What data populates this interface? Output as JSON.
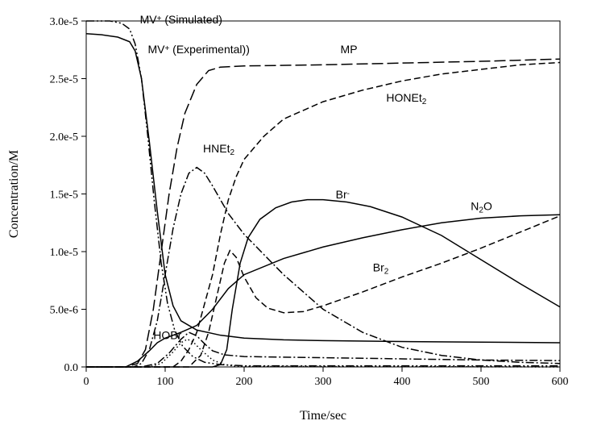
{
  "chart_data": {
    "type": "line",
    "xlabel": "Time/sec",
    "ylabel": "Concentration/M",
    "xlim": [
      0,
      600
    ],
    "ylim": [
      0,
      3e-05
    ],
    "x_ticks": [
      0,
      100,
      200,
      300,
      400,
      500,
      600
    ],
    "x_tick_labels": [
      "0",
      "100",
      "200",
      "300",
      "400",
      "500",
      "600"
    ],
    "y_ticks": [
      0,
      5e-06,
      1e-05,
      1.5e-05,
      2e-05,
      2.5e-05,
      3e-05
    ],
    "y_tick_labels": [
      "0.0",
      "5.0e-6",
      "1.0e-5",
      "1.5e-5",
      "2.0e-5",
      "2.5e-5",
      "3.0e-5"
    ],
    "grid": false,
    "legend": "none",
    "annotations": [
      {
        "id": "mv-sim",
        "base": "MV",
        "sup": "+",
        "sub": "",
        "rest": " (Simulated)",
        "x": 68,
        "y": 2.98e-05
      },
      {
        "id": "mv-exp",
        "base": "MV",
        "sup": "+",
        "sub": "",
        "rest": " (Experimental))",
        "x": 78,
        "y": 2.72e-05
      },
      {
        "id": "mp",
        "base": "MP",
        "sup": "",
        "sub": "",
        "rest": "",
        "x": 322,
        "y": 2.72e-05
      },
      {
        "id": "honet2",
        "base": "HONEt",
        "sup": "",
        "sub": "2",
        "rest": "",
        "x": 380,
        "y": 2.3e-05
      },
      {
        "id": "hnet2",
        "base": "HNEt",
        "sup": "",
        "sub": "2",
        "rest": "",
        "x": 148,
        "y": 1.86e-05
      },
      {
        "id": "br-minus",
        "base": "Br",
        "sup": "-",
        "sub": "",
        "rest": "",
        "x": 316,
        "y": 1.46e-05
      },
      {
        "id": "n2o",
        "base": "N",
        "sup": "",
        "sub": "2",
        "rest": "O",
        "x": 487,
        "y": 1.36e-05
      },
      {
        "id": "br2",
        "base": "Br",
        "sup": "",
        "sub": "2",
        "rest": "",
        "x": 363,
        "y": 8.3e-06
      },
      {
        "id": "hobr",
        "base": "HOBr",
        "sup": "",
        "sub": "",
        "rest": "",
        "x": 85,
        "y": 2.4e-06
      }
    ],
    "series": [
      {
        "style": "dash-dot-dot",
        "points": [
          [
            0,
            3e-05
          ],
          [
            30,
            3e-05
          ],
          [
            45,
            2.98e-05
          ],
          [
            55,
            2.93e-05
          ],
          [
            62,
            2.8e-05
          ],
          [
            70,
            2.5e-05
          ],
          [
            78,
            2e-05
          ],
          [
            86,
            1.45e-05
          ],
          [
            95,
            9e-06
          ],
          [
            103,
            5.5e-06
          ],
          [
            112,
            3.2e-06
          ],
          [
            122,
            1.8e-06
          ],
          [
            135,
            9e-07
          ],
          [
            150,
            4e-07
          ],
          [
            170,
            2e-07
          ],
          [
            200,
            1e-07
          ],
          [
            600,
            1e-07
          ]
        ]
      },
      {
        "style": "solid",
        "points": [
          [
            0,
            2.89e-05
          ],
          [
            20,
            2.88e-05
          ],
          [
            40,
            2.86e-05
          ],
          [
            55,
            2.82e-05
          ],
          [
            62,
            2.74e-05
          ],
          [
            70,
            2.5e-05
          ],
          [
            80,
            1.95e-05
          ],
          [
            90,
            1.35e-05
          ],
          [
            100,
            8e-06
          ],
          [
            110,
            5.3e-06
          ],
          [
            120,
            4e-06
          ],
          [
            140,
            3.2e-06
          ],
          [
            170,
            2.75e-06
          ],
          [
            200,
            2.5e-06
          ],
          [
            250,
            2.35e-06
          ],
          [
            300,
            2.28e-06
          ],
          [
            400,
            2.2e-06
          ],
          [
            500,
            2.15e-06
          ],
          [
            600,
            2.1e-06
          ]
        ]
      },
      {
        "style": "long-dash",
        "points": [
          [
            0,
            0
          ],
          [
            50,
            0
          ],
          [
            65,
            3e-07
          ],
          [
            75,
            1.5e-06
          ],
          [
            85,
            5e-06
          ],
          [
            95,
            1e-05
          ],
          [
            105,
            1.5e-05
          ],
          [
            115,
            1.9e-05
          ],
          [
            125,
            2.2e-05
          ],
          [
            140,
            2.45e-05
          ],
          [
            155,
            2.57e-05
          ],
          [
            170,
            2.6e-05
          ],
          [
            200,
            2.61e-05
          ],
          [
            300,
            2.62e-05
          ],
          [
            400,
            2.635e-05
          ],
          [
            500,
            2.65e-05
          ],
          [
            600,
            2.67e-05
          ]
        ]
      },
      {
        "style": "dash",
        "points": [
          [
            0,
            0
          ],
          [
            110,
            0
          ],
          [
            120,
            5e-07
          ],
          [
            130,
            1.5e-06
          ],
          [
            140,
            3e-06
          ],
          [
            150,
            5.5e-06
          ],
          [
            160,
            8e-06
          ],
          [
            170,
            1.15e-05
          ],
          [
            180,
            1.45e-05
          ],
          [
            190,
            1.65e-05
          ],
          [
            200,
            1.8e-05
          ],
          [
            225,
            2e-05
          ],
          [
            250,
            2.15e-05
          ],
          [
            300,
            2.3e-05
          ],
          [
            350,
            2.4e-05
          ],
          [
            400,
            2.48e-05
          ],
          [
            450,
            2.54e-05
          ],
          [
            500,
            2.58e-05
          ],
          [
            550,
            2.62e-05
          ],
          [
            600,
            2.64e-05
          ]
        ]
      },
      {
        "style": "dash-dot",
        "points": [
          [
            0,
            0
          ],
          [
            60,
            0
          ],
          [
            70,
            3e-07
          ],
          [
            80,
            1.5e-06
          ],
          [
            90,
            4e-06
          ],
          [
            100,
            8e-06
          ],
          [
            110,
            1.2e-05
          ],
          [
            120,
            1.5e-05
          ],
          [
            130,
            1.68e-05
          ],
          [
            140,
            1.73e-05
          ],
          [
            150,
            1.68e-05
          ],
          [
            160,
            1.57e-05
          ],
          [
            170,
            1.45e-05
          ],
          [
            180,
            1.33e-05
          ],
          [
            200,
            1.15e-05
          ],
          [
            250,
            8e-06
          ],
          [
            300,
            5e-06
          ],
          [
            350,
            3e-06
          ],
          [
            400,
            1.7e-06
          ],
          [
            450,
            1e-06
          ],
          [
            500,
            6e-07
          ],
          [
            550,
            4e-07
          ],
          [
            600,
            3e-07
          ]
        ]
      },
      {
        "style": "solid",
        "points": [
          [
            0,
            0
          ],
          [
            160,
            0
          ],
          [
            170,
            2e-07
          ],
          [
            178,
            1.5e-06
          ],
          [
            185,
            5e-06
          ],
          [
            195,
            9e-06
          ],
          [
            205,
            1.12e-05
          ],
          [
            220,
            1.28e-05
          ],
          [
            240,
            1.38e-05
          ],
          [
            260,
            1.43e-05
          ],
          [
            280,
            1.45e-05
          ],
          [
            300,
            1.45e-05
          ],
          [
            330,
            1.43e-05
          ],
          [
            360,
            1.39e-05
          ],
          [
            400,
            1.3e-05
          ],
          [
            450,
            1.14e-05
          ],
          [
            500,
            9.3e-06
          ],
          [
            550,
            7.2e-06
          ],
          [
            600,
            5.2e-06
          ]
        ]
      },
      {
        "style": "solid",
        "points": [
          [
            0,
            0
          ],
          [
            50,
            0
          ],
          [
            65,
            5e-07
          ],
          [
            80,
            1.4e-06
          ],
          [
            90,
            2.1e-06
          ],
          [
            100,
            2.5e-06
          ],
          [
            120,
            3e-06
          ],
          [
            140,
            3.6e-06
          ],
          [
            160,
            5e-06
          ],
          [
            180,
            6.8e-06
          ],
          [
            200,
            8e-06
          ],
          [
            250,
            9.4e-06
          ],
          [
            300,
            1.04e-05
          ],
          [
            350,
            1.12e-05
          ],
          [
            400,
            1.19e-05
          ],
          [
            450,
            1.25e-05
          ],
          [
            500,
            1.29e-05
          ],
          [
            550,
            1.31e-05
          ],
          [
            600,
            1.32e-05
          ]
        ]
      },
      {
        "style": "dash",
        "points": [
          [
            0,
            0
          ],
          [
            130,
            0
          ],
          [
            145,
            1e-06
          ],
          [
            155,
            3e-06
          ],
          [
            165,
            6e-06
          ],
          [
            175,
            9e-06
          ],
          [
            182,
            1.01e-05
          ],
          [
            190,
            9.5e-06
          ],
          [
            200,
            7.8e-06
          ],
          [
            215,
            6e-06
          ],
          [
            230,
            5.1e-06
          ],
          [
            250,
            4.7e-06
          ],
          [
            275,
            4.8e-06
          ],
          [
            300,
            5.3e-06
          ],
          [
            350,
            6.5e-06
          ],
          [
            400,
            7.8e-06
          ],
          [
            450,
            9e-06
          ],
          [
            500,
            1.03e-05
          ],
          [
            550,
            1.17e-05
          ],
          [
            600,
            1.31e-05
          ]
        ]
      },
      {
        "style": "dash-dot",
        "points": [
          [
            0,
            0
          ],
          [
            70,
            0
          ],
          [
            90,
            3e-07
          ],
          [
            105,
            1.2e-06
          ],
          [
            120,
            2.4e-06
          ],
          [
            130,
            3e-06
          ],
          [
            140,
            2.7e-06
          ],
          [
            150,
            2e-06
          ],
          [
            160,
            1.4e-06
          ],
          [
            175,
            1.05e-06
          ],
          [
            200,
            9e-07
          ],
          [
            300,
            8e-07
          ],
          [
            400,
            7e-07
          ],
          [
            500,
            6e-07
          ],
          [
            600,
            5.5e-07
          ]
        ]
      },
      {
        "style": "dot",
        "points": [
          [
            0,
            0
          ],
          [
            80,
            0
          ],
          [
            95,
            3e-07
          ],
          [
            110,
            1.3e-06
          ],
          [
            120,
            2.1e-06
          ],
          [
            128,
            2.4e-06
          ],
          [
            135,
            2.2e-06
          ],
          [
            145,
            1.5e-06
          ],
          [
            160,
            6e-07
          ],
          [
            175,
            2e-07
          ],
          [
            190,
            5e-08
          ],
          [
            600,
            0
          ]
        ]
      }
    ]
  }
}
